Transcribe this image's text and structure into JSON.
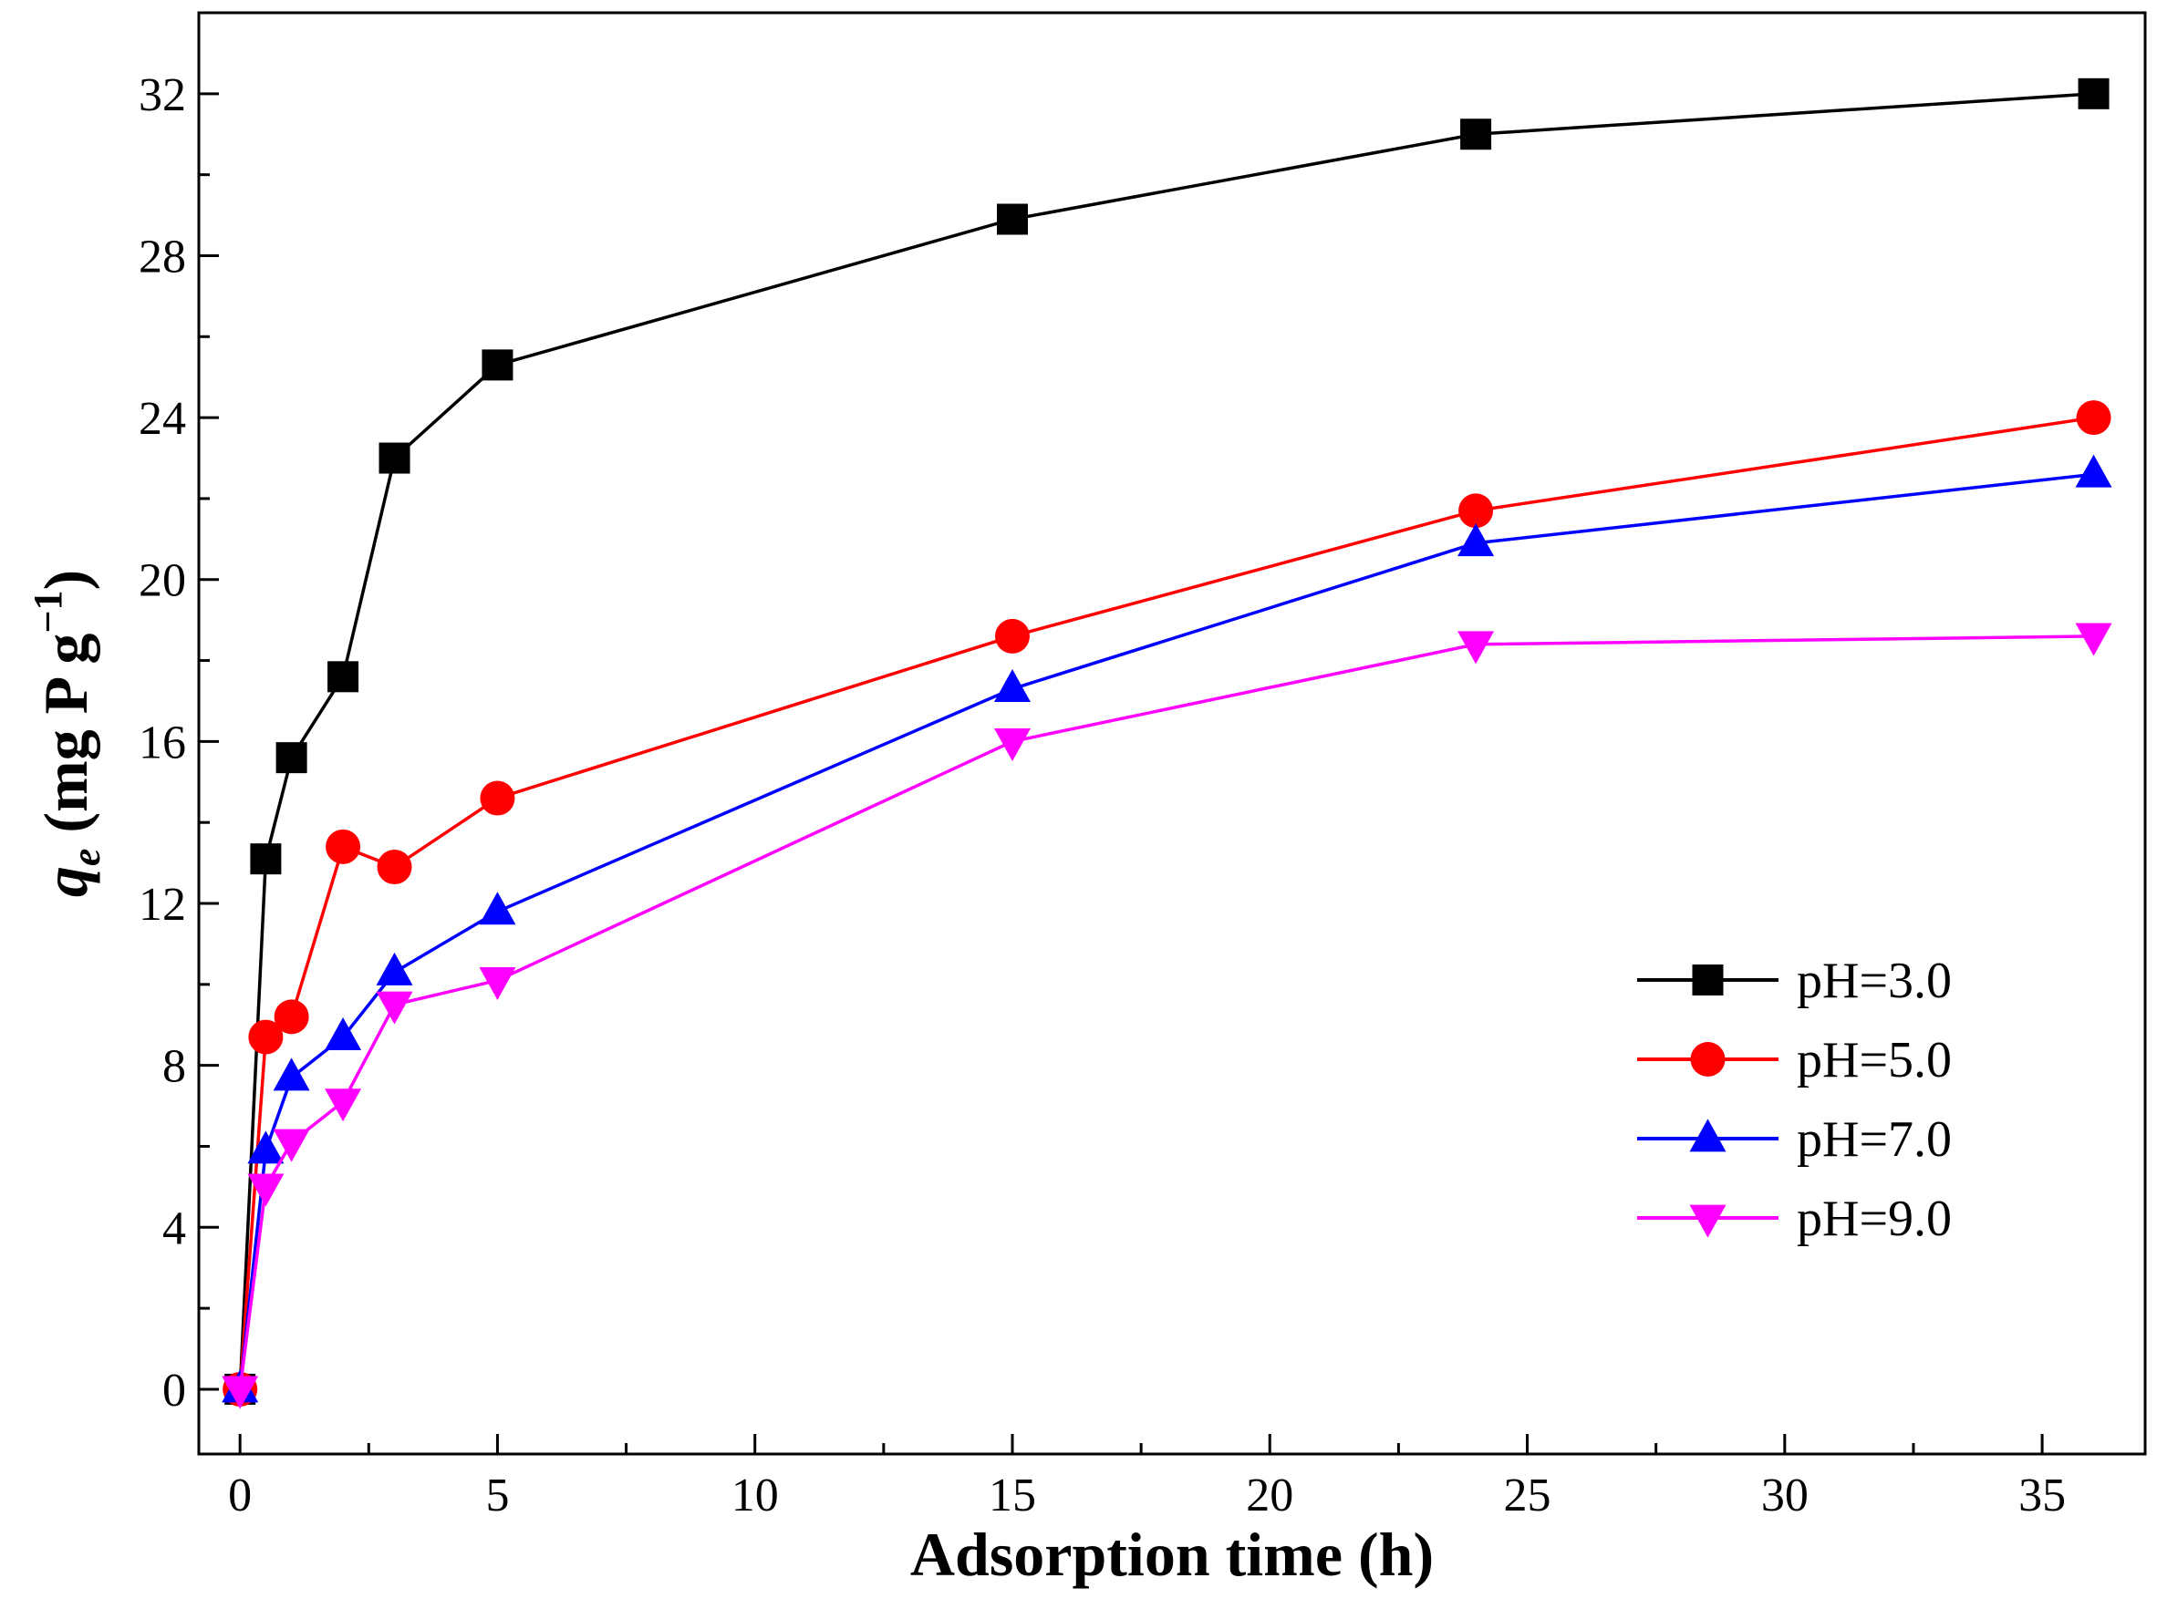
{
  "chart_data": {
    "type": "line",
    "title": "",
    "xlabel": "Adsorption time (h)",
    "ylabel_parts": {
      "symbol": "q",
      "subscript": "e",
      "unit": " (mg P g",
      "exponent": "−1",
      "close": ")"
    },
    "xlim": [
      -0.8,
      37
    ],
    "ylim": [
      -1.6,
      34
    ],
    "xticks": [
      0,
      5,
      10,
      15,
      20,
      25,
      30,
      35
    ],
    "yticks": [
      0,
      4,
      8,
      12,
      16,
      20,
      24,
      28,
      32
    ],
    "legend_position": "bottom-right",
    "x": [
      0,
      0.5,
      1,
      2,
      3,
      5,
      15,
      24,
      36
    ],
    "series": [
      {
        "name": "pH=3.0",
        "color": "#000000",
        "marker": "square",
        "values": [
          0,
          13.1,
          15.6,
          17.6,
          23.0,
          25.3,
          28.9,
          31.0,
          32.0
        ]
      },
      {
        "name": "pH=5.0",
        "color": "#ff0000",
        "marker": "circle",
        "values": [
          0,
          8.7,
          9.2,
          13.4,
          12.9,
          14.6,
          18.6,
          21.7,
          24.0
        ]
      },
      {
        "name": "pH=7.0",
        "color": "#0000ff",
        "marker": "triangle-up",
        "values": [
          0,
          5.9,
          7.7,
          8.7,
          10.3,
          11.8,
          17.3,
          20.9,
          22.6
        ]
      },
      {
        "name": "pH=9.0",
        "color": "#ff00ff",
        "marker": "triangle-down",
        "values": [
          0,
          5.0,
          6.1,
          7.1,
          9.5,
          10.1,
          16.0,
          18.4,
          18.6
        ]
      }
    ]
  }
}
